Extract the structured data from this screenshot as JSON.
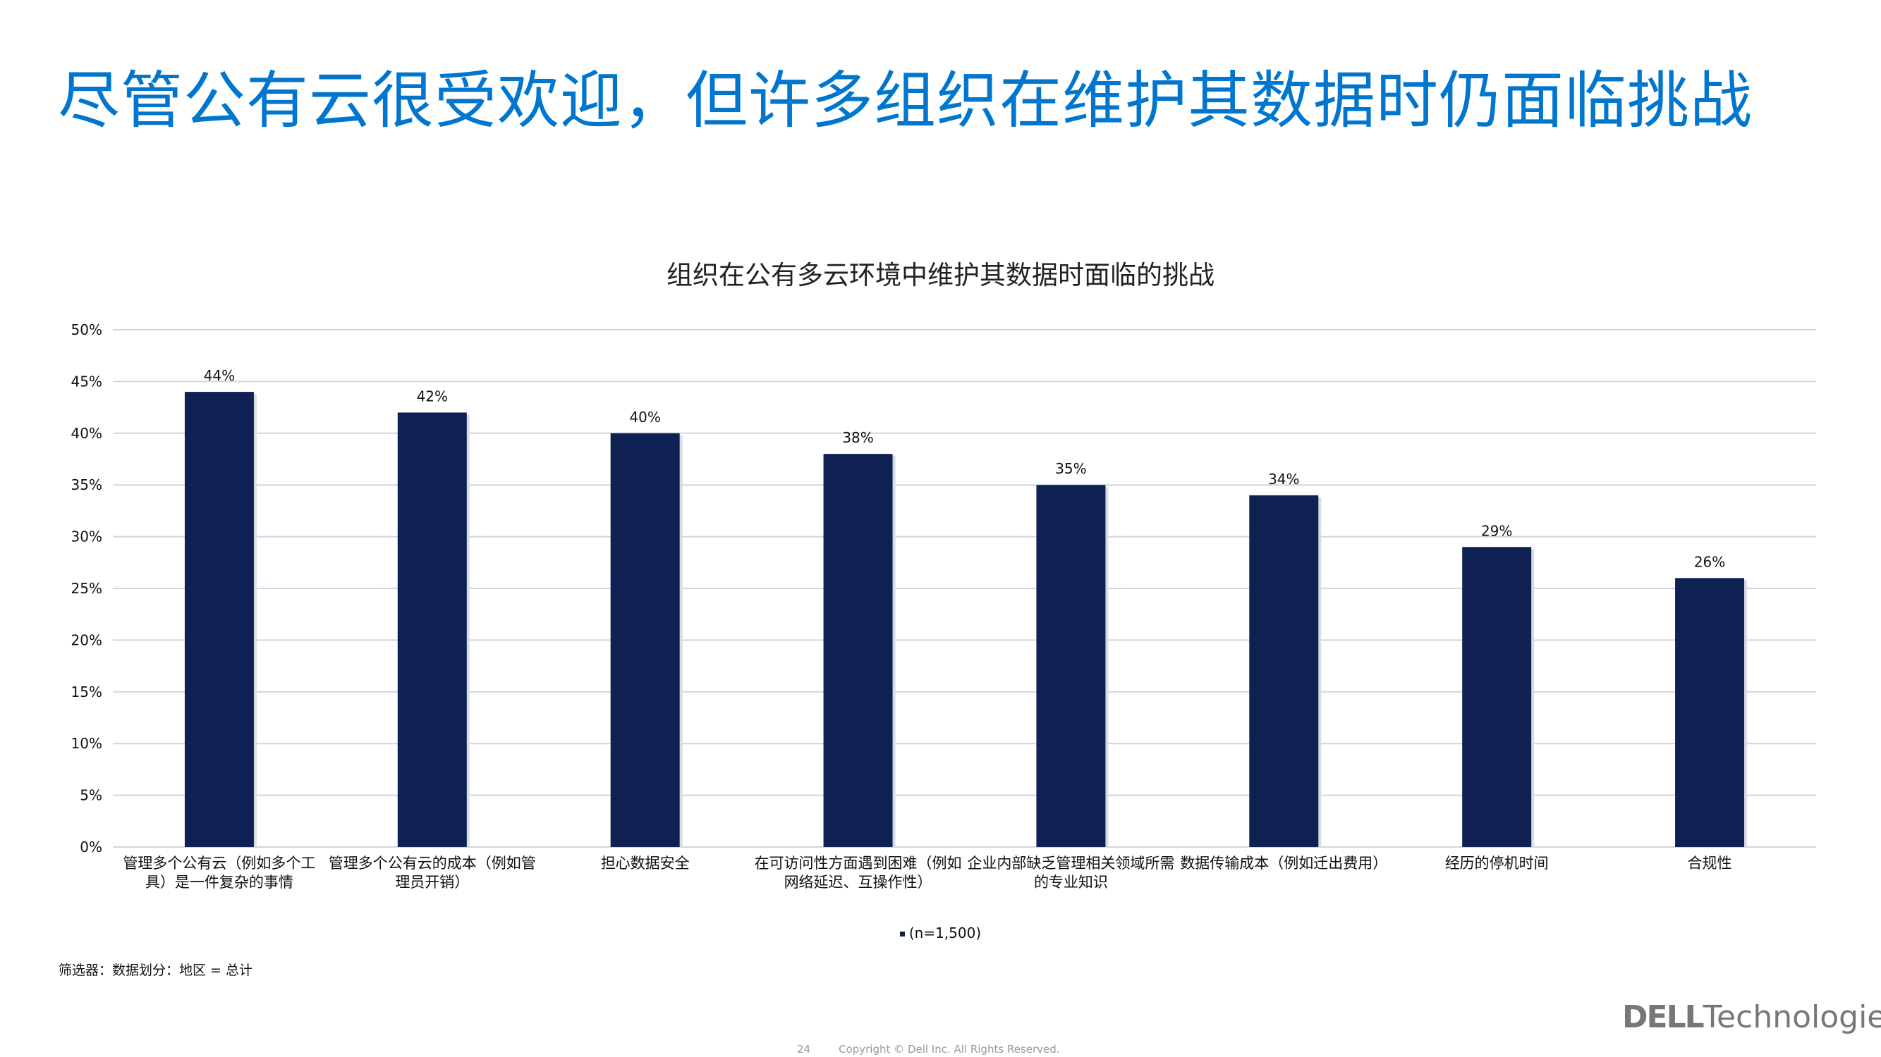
{
  "slide": {
    "title": "尽管公有云很受欢迎，但许多组织在维护其数据时仍面临挑战",
    "filter_note": "筛选器：数据划分：地区 = 总计",
    "page_number": "24",
    "copyright": "Copyright © Dell Inc. All Rights Reserved.",
    "logo_brand": "DELL",
    "logo_suffix": "Technologies",
    "title_color": "#0076ce"
  },
  "chart_data": {
    "type": "bar",
    "title": "组织在公有多云环境中维护其数据时面临的挑战",
    "categories": [
      "管理多个公有云（例如多个工具）是一件复杂的事情",
      "管理多个公有云的成本（例如管理员开销）",
      "担心数据安全",
      "在可访问性方面遇到困难（例如网络延迟、互操作性）",
      "企业内部缺乏管理相关领域所需的专业知识",
      "数据传输成本（例如迁出费用）",
      "经历的停机时间",
      "合规性"
    ],
    "series": [
      {
        "name": "(n=1,500)",
        "values": [
          44,
          42,
          40,
          38,
          35,
          34,
          29,
          26
        ],
        "color": "#0f2152"
      }
    ],
    "data_labels": [
      "44%",
      "42%",
      "40%",
      "38%",
      "35%",
      "34%",
      "29%",
      "26%"
    ],
    "yticks": [
      "0%",
      "5%",
      "10%",
      "15%",
      "20%",
      "25%",
      "30%",
      "35%",
      "40%",
      "45%",
      "50%"
    ],
    "ylim": [
      0,
      50
    ],
    "grid": true,
    "legend_position": "bottom"
  }
}
